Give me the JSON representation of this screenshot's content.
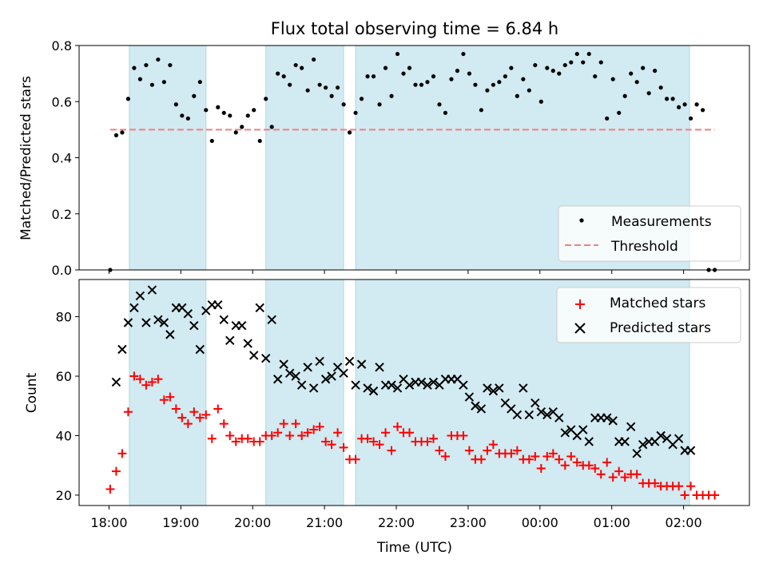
{
  "colors": {
    "shade": "#add8e6",
    "measurement": "#000000",
    "threshold": "#f08080",
    "matched": "#ff0000",
    "predicted": "#000000"
  },
  "chart_data": [
    {
      "type": "scatter",
      "title": "Flux total observing time = 6.84 h",
      "xlabel": "",
      "ylabel": "Matched/Predicted stars",
      "xlim": [
        "17:35",
        "02:55"
      ],
      "ylim": [
        0,
        0.8
      ],
      "yticks": [
        0.0,
        0.2,
        0.4,
        0.6,
        0.8
      ],
      "ytick_labels": [
        "0.0",
        "0.2",
        "0.4",
        "0.6",
        "0.8"
      ],
      "grid": false,
      "legend_position": "lower right",
      "shaded_intervals": [
        [
          "18:17",
          "19:21"
        ],
        [
          "20:11",
          "21:16"
        ],
        [
          "21:26",
          "02:05"
        ]
      ],
      "series": [
        {
          "name": "Measurements",
          "marker": "dot",
          "x": [
            "18:01",
            "18:06",
            "18:11",
            "18:16",
            "18:21",
            "18:26",
            "18:31",
            "18:36",
            "18:41",
            "18:46",
            "18:51",
            "18:56",
            "19:01",
            "19:06",
            "19:11",
            "19:16",
            "19:21",
            "19:26",
            "19:31",
            "19:36",
            "19:41",
            "19:46",
            "19:51",
            "19:56",
            "20:01",
            "20:06",
            "20:11",
            "20:16",
            "20:21",
            "20:26",
            "20:31",
            "20:36",
            "20:41",
            "20:46",
            "20:51",
            "20:56",
            "21:01",
            "21:06",
            "21:11",
            "21:16",
            "21:21",
            "21:26",
            "21:31",
            "21:36",
            "21:41",
            "21:46",
            "21:51",
            "21:56",
            "22:01",
            "22:06",
            "22:11",
            "22:16",
            "22:21",
            "22:26",
            "22:31",
            "22:36",
            "22:41",
            "22:46",
            "22:51",
            "22:56",
            "23:01",
            "23:06",
            "23:11",
            "23:16",
            "23:21",
            "23:26",
            "23:31",
            "23:36",
            "23:41",
            "23:46",
            "23:51",
            "23:56",
            "00:01",
            "00:06",
            "00:11",
            "00:16",
            "00:21",
            "00:26",
            "00:31",
            "00:36",
            "00:41",
            "00:46",
            "00:51",
            "00:56",
            "01:01",
            "01:06",
            "01:11",
            "01:16",
            "01:21",
            "01:26",
            "01:31",
            "01:36",
            "01:41",
            "01:46",
            "01:51",
            "01:56",
            "02:01",
            "02:06",
            "02:11",
            "02:16",
            "02:21",
            "02:26"
          ],
          "y": [
            0.0,
            0.48,
            0.49,
            0.61,
            0.72,
            0.68,
            0.73,
            0.66,
            0.75,
            0.67,
            0.73,
            0.59,
            0.55,
            0.54,
            0.62,
            0.67,
            0.57,
            0.46,
            0.58,
            0.56,
            0.55,
            0.49,
            0.51,
            0.55,
            0.57,
            0.46,
            0.61,
            0.51,
            0.7,
            0.69,
            0.66,
            0.73,
            0.72,
            0.64,
            0.75,
            0.66,
            0.65,
            0.62,
            0.65,
            0.59,
            0.49,
            0.56,
            0.61,
            0.69,
            0.69,
            0.59,
            0.72,
            0.62,
            0.77,
            0.7,
            0.72,
            0.66,
            0.66,
            0.67,
            0.69,
            0.59,
            0.56,
            0.68,
            0.71,
            0.77,
            0.7,
            0.66,
            0.57,
            0.64,
            0.66,
            0.67,
            0.69,
            0.72,
            0.62,
            0.68,
            0.64,
            0.73,
            0.6,
            0.72,
            0.71,
            0.7,
            0.73,
            0.74,
            0.77,
            0.74,
            0.77,
            0.69,
            0.74,
            0.54,
            0.68,
            0.56,
            0.62,
            0.7,
            0.67,
            0.72,
            0.63,
            0.71,
            0.65,
            0.61,
            0.61,
            0.58,
            0.59,
            0.54,
            0.59,
            0.57,
            0.0,
            0.0
          ]
        },
        {
          "name": "Threshold",
          "marker": "dashed-line",
          "x": [
            "18:01",
            "02:26"
          ],
          "y": [
            0.5,
            0.5
          ]
        }
      ]
    },
    {
      "type": "scatter",
      "title": "",
      "xlabel": "Time (UTC)",
      "ylabel": "Count",
      "xlim": [
        "17:35",
        "02:55"
      ],
      "ylim": [
        16.5,
        92.5
      ],
      "yticks": [
        20,
        40,
        60,
        80
      ],
      "ytick_labels": [
        "20",
        "40",
        "60",
        "80"
      ],
      "xticks": [
        "18:00",
        "19:00",
        "20:00",
        "21:00",
        "22:00",
        "23:00",
        "00:00",
        "01:00",
        "02:00"
      ],
      "grid": false,
      "legend_position": "upper right",
      "shaded_intervals": [
        [
          "18:17",
          "19:21"
        ],
        [
          "20:11",
          "21:16"
        ],
        [
          "21:26",
          "02:05"
        ]
      ],
      "series": [
        {
          "name": "Matched stars",
          "marker": "plus",
          "x": [
            "18:01",
            "18:06",
            "18:11",
            "18:16",
            "18:21",
            "18:26",
            "18:31",
            "18:36",
            "18:41",
            "18:46",
            "18:51",
            "18:56",
            "19:01",
            "19:06",
            "19:11",
            "19:16",
            "19:21",
            "19:26",
            "19:31",
            "19:36",
            "19:41",
            "19:46",
            "19:51",
            "19:56",
            "20:01",
            "20:06",
            "20:11",
            "20:16",
            "20:21",
            "20:26",
            "20:31",
            "20:36",
            "20:41",
            "20:46",
            "20:51",
            "20:56",
            "21:01",
            "21:06",
            "21:11",
            "21:16",
            "21:21",
            "21:26",
            "21:31",
            "21:36",
            "21:41",
            "21:46",
            "21:51",
            "21:56",
            "22:01",
            "22:06",
            "22:11",
            "22:16",
            "22:21",
            "22:26",
            "22:31",
            "22:36",
            "22:41",
            "22:46",
            "22:51",
            "22:56",
            "23:01",
            "23:06",
            "23:11",
            "23:16",
            "23:21",
            "23:26",
            "23:31",
            "23:36",
            "23:41",
            "23:46",
            "23:51",
            "23:56",
            "00:01",
            "00:06",
            "00:11",
            "00:16",
            "00:21",
            "00:26",
            "00:31",
            "00:36",
            "00:41",
            "00:46",
            "00:51",
            "00:56",
            "01:01",
            "01:06",
            "01:11",
            "01:16",
            "01:21",
            "01:26",
            "01:31",
            "01:36",
            "01:41",
            "01:46",
            "01:51",
            "01:56",
            "02:01",
            "02:06",
            "02:11",
            "02:16",
            "02:21",
            "02:26"
          ],
          "y": [
            22,
            28,
            34,
            48,
            60,
            59,
            57,
            58,
            59,
            52,
            53,
            49,
            46,
            44,
            48,
            46,
            47,
            39,
            49,
            44,
            40,
            38,
            39,
            39,
            38,
            38,
            40,
            40,
            41,
            44,
            40,
            44,
            40,
            41,
            42,
            43,
            38,
            37,
            41,
            36,
            32,
            32,
            39,
            39,
            38,
            37,
            41,
            35,
            43,
            41,
            41,
            38,
            38,
            38,
            39,
            35,
            33,
            40,
            40,
            40,
            35,
            32,
            32,
            35,
            37,
            34,
            34,
            34,
            35,
            32,
            32,
            33,
            29,
            33,
            34,
            32,
            30,
            33,
            31,
            30,
            30,
            29,
            27,
            31,
            26,
            28,
            26,
            27,
            27,
            24,
            24,
            24,
            23,
            23,
            23,
            23,
            20,
            23,
            20,
            20,
            20,
            20
          ]
        },
        {
          "name": "Predicted stars",
          "marker": "x",
          "x": [
            "18:06",
            "18:11",
            "18:16",
            "18:21",
            "18:26",
            "18:31",
            "18:36",
            "18:41",
            "18:46",
            "18:51",
            "18:56",
            "19:01",
            "19:06",
            "19:11",
            "19:16",
            "19:21",
            "19:26",
            "19:31",
            "19:36",
            "19:41",
            "19:46",
            "19:51",
            "19:56",
            "20:01",
            "20:06",
            "20:11",
            "20:16",
            "20:21",
            "20:26",
            "20:31",
            "20:36",
            "20:41",
            "20:46",
            "20:51",
            "20:56",
            "21:01",
            "21:06",
            "21:11",
            "21:16",
            "21:21",
            "21:26",
            "21:31",
            "21:36",
            "21:41",
            "21:46",
            "21:51",
            "21:56",
            "22:01",
            "22:06",
            "22:11",
            "22:16",
            "22:21",
            "22:26",
            "22:31",
            "22:36",
            "22:41",
            "22:46",
            "22:51",
            "22:56",
            "23:01",
            "23:06",
            "23:11",
            "23:16",
            "23:21",
            "23:26",
            "23:31",
            "23:36",
            "23:41",
            "23:46",
            "23:51",
            "23:56",
            "00:01",
            "00:06",
            "00:11",
            "00:16",
            "00:21",
            "00:26",
            "00:31",
            "00:36",
            "00:41",
            "00:46",
            "00:51",
            "00:56",
            "01:01",
            "01:06",
            "01:11",
            "01:16",
            "01:21",
            "01:26",
            "01:31",
            "01:36",
            "01:41",
            "01:46",
            "01:51",
            "01:56",
            "02:01",
            "02:06"
          ],
          "y": [
            58,
            69,
            78,
            83,
            87,
            78,
            89,
            79,
            78,
            74,
            83,
            83,
            81,
            77,
            69,
            82,
            84,
            84,
            79,
            72,
            77,
            77,
            71,
            67,
            83,
            66,
            79,
            59,
            64,
            61,
            60,
            57,
            63,
            56,
            65,
            59,
            60,
            63,
            61,
            65,
            57,
            64,
            56,
            55,
            63,
            57,
            57,
            56,
            59,
            57,
            58,
            58,
            57,
            58,
            57,
            59,
            59,
            59,
            57,
            53,
            50,
            49,
            56,
            55,
            56,
            51,
            49,
            47,
            56,
            47,
            51,
            48,
            47,
            48,
            46,
            41,
            42,
            40,
            42,
            38,
            46,
            46,
            46,
            45,
            38,
            38,
            43,
            34,
            37,
            38,
            38,
            40,
            39,
            37,
            39,
            35,
            35
          ]
        }
      ]
    }
  ]
}
